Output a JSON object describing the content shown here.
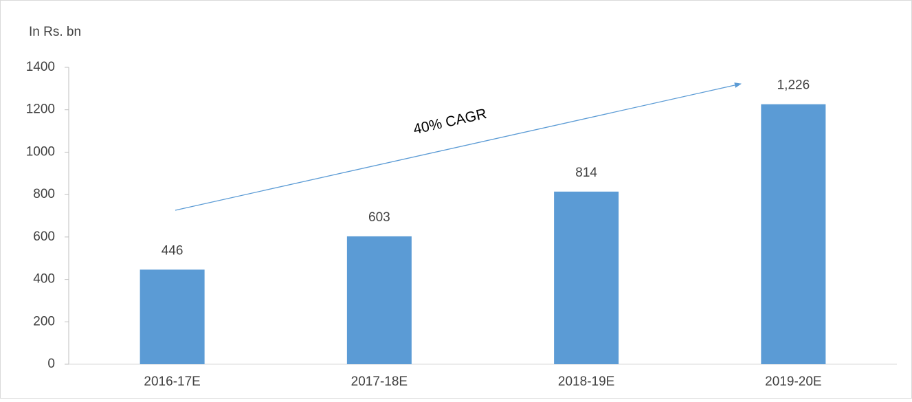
{
  "chart_data": {
    "type": "bar",
    "axis_label": "In Rs. bn",
    "annotation": "40% CAGR",
    "categories": [
      "2016-17E",
      "2017-18E",
      "2018-19E",
      "2019-20E"
    ],
    "values": [
      446,
      603,
      814,
      1226
    ],
    "value_labels": [
      "446",
      "603",
      "814",
      "1,226"
    ],
    "color": "#5b9bd5",
    "ylim": [
      0,
      1400
    ],
    "yticks": [
      0,
      200,
      400,
      600,
      800,
      1000,
      1200,
      1400
    ],
    "grid": false
  }
}
